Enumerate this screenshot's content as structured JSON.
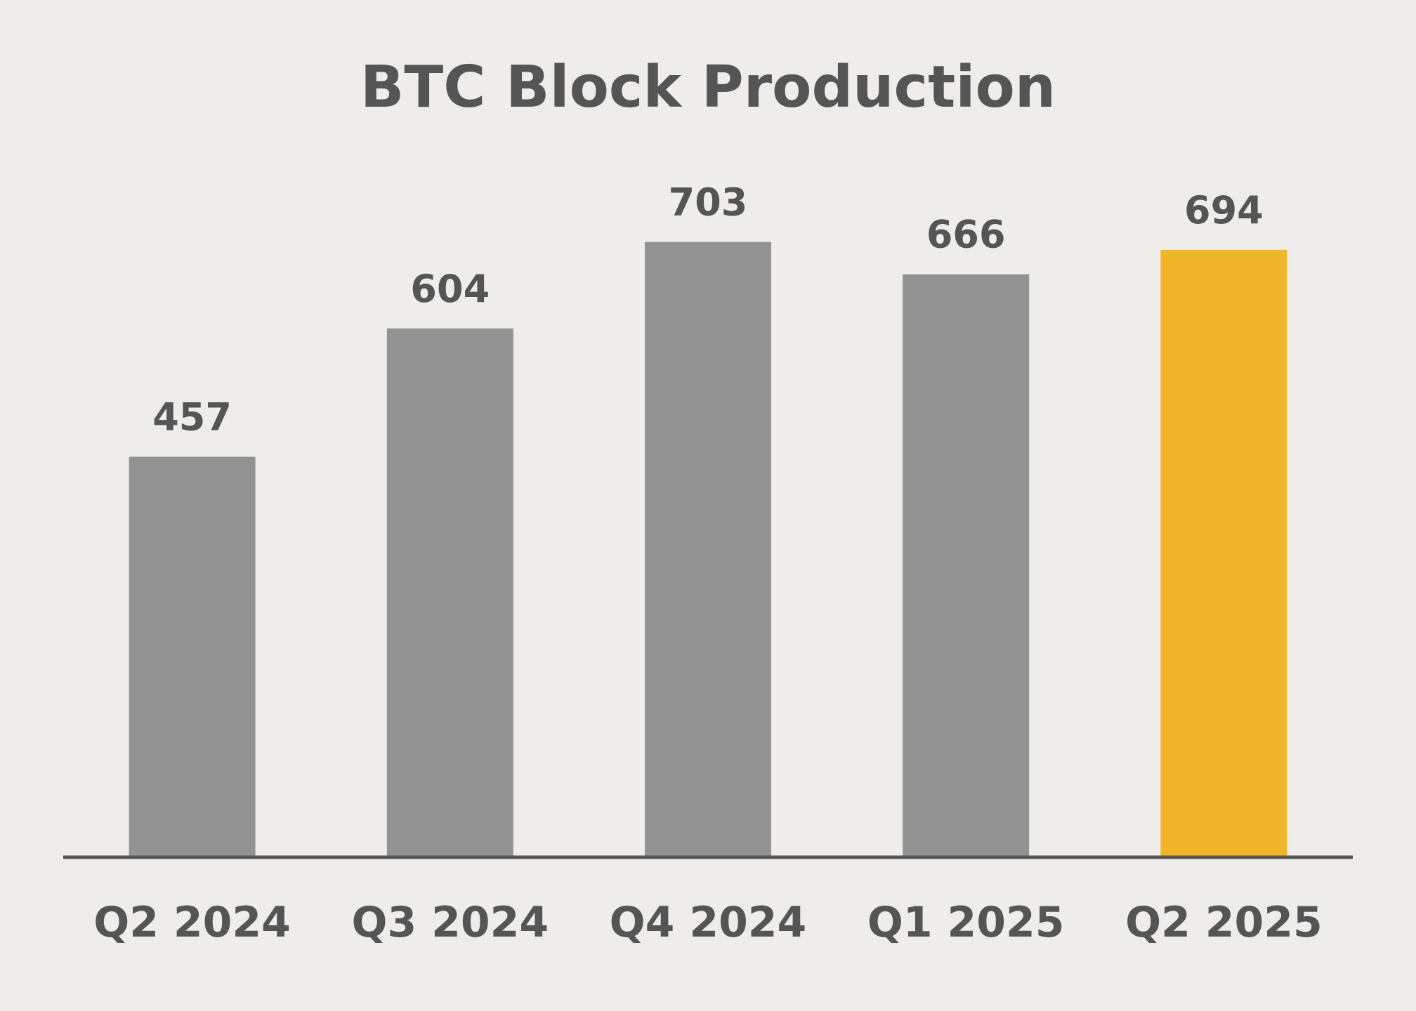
{
  "chart_data": {
    "type": "bar",
    "title": "BTC Block Production",
    "categories": [
      "Q2 2024",
      "Q3 2024",
      "Q4 2024",
      "Q1 2025",
      "Q2 2025"
    ],
    "values": [
      457,
      604,
      703,
      666,
      694
    ],
    "colors": [
      "#929292",
      "#929292",
      "#929292",
      "#929292",
      "#f2b52a"
    ],
    "ylim": [
      0,
      800
    ]
  }
}
